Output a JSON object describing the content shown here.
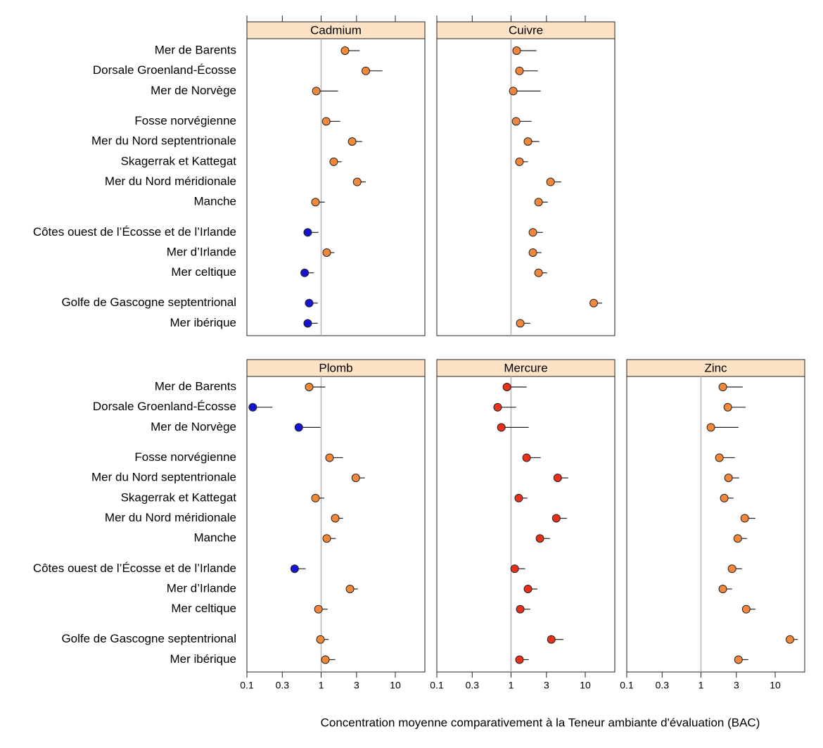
{
  "chart_data": {
    "type": "dot",
    "x_label": "Concentration moyenne  comparativement à la Teneur ambiante d'évaluation (BAC)",
    "log_x": true,
    "xlim": [
      0.1,
      25
    ],
    "xticks": [
      0.1,
      0.3,
      1,
      3,
      10
    ],
    "reference_x": 1,
    "categories": [
      "Mer de Barents",
      "Dorsale Groenland-Écosse",
      "Mer de Norvège",
      "Fosse norvégienne",
      "Mer du Nord septentrionale",
      "Skagerrak et Kattegat",
      "Mer du Nord méridionale",
      "Manche",
      "Côtes ouest de l’Écosse et de l’Irlande",
      "Mer d’Irlande",
      "Mer celtique",
      "Golfe de Gascogne septentrional",
      "Mer ibérique"
    ],
    "panels": [
      {
        "title": "Cadmium",
        "values": [
          2.1,
          4.0,
          0.86,
          1.17,
          2.62,
          1.48,
          3.06,
          0.84,
          0.66,
          1.19,
          0.6,
          0.69,
          0.66
        ],
        "upper": [
          3.3,
          6.7,
          1.69,
          1.81,
          3.57,
          1.89,
          4.0,
          1.12,
          0.92,
          1.51,
          0.8,
          0.9,
          0.9
        ],
        "colors": [
          "#f4883a",
          "#f4883a",
          "#f4883a",
          "#f4883a",
          "#f4883a",
          "#f4883a",
          "#f4883a",
          "#f4883a",
          "#1414d2",
          "#f4883a",
          "#1414d2",
          "#1414d2",
          "#1414d2"
        ]
      },
      {
        "title": "Cuivre",
        "values": [
          1.19,
          1.3,
          1.07,
          1.17,
          1.69,
          1.3,
          3.41,
          2.35,
          1.97,
          1.97,
          2.35,
          13.0,
          1.33
        ],
        "upper": [
          2.2,
          2.3,
          2.51,
          1.89,
          2.4,
          1.69,
          4.74,
          3.13,
          2.68,
          2.57,
          3.06,
          16.9,
          1.81
        ],
        "colors": [
          "#f4883a",
          "#f4883a",
          "#f4883a",
          "#f4883a",
          "#f4883a",
          "#f4883a",
          "#f4883a",
          "#f4883a",
          "#f4883a",
          "#f4883a",
          "#f4883a",
          "#f4883a",
          "#f4883a"
        ]
      },
      {
        "title": "Plomb",
        "values": [
          0.69,
          0.12,
          0.5,
          1.3,
          2.93,
          0.84,
          1.55,
          1.19,
          0.44,
          2.45,
          0.92,
          0.98,
          1.14
        ],
        "upper": [
          1.14,
          0.22,
          0.98,
          1.97,
          3.89,
          1.1,
          1.97,
          1.58,
          0.62,
          3.13,
          1.22,
          1.26,
          1.55
        ],
        "colors": [
          "#f4883a",
          "#1414d2",
          "#1414d2",
          "#f4883a",
          "#f4883a",
          "#f4883a",
          "#f4883a",
          "#f4883a",
          "#1414d2",
          "#f4883a",
          "#f4883a",
          "#f4883a",
          "#f4883a"
        ]
      },
      {
        "title": "Mercure",
        "values": [
          0.88,
          0.66,
          0.74,
          1.62,
          4.25,
          1.27,
          4.07,
          2.45,
          1.12,
          1.69,
          1.33,
          3.49,
          1.3
        ],
        "upper": [
          1.62,
          1.17,
          1.73,
          2.51,
          5.9,
          1.66,
          5.65,
          3.34,
          1.55,
          2.27,
          1.81,
          5.07,
          1.73
        ],
        "colors": [
          "#e8301a",
          "#e8301a",
          "#e8301a",
          "#e8301a",
          "#e8301a",
          "#e8301a",
          "#e8301a",
          "#e8301a",
          "#e8301a",
          "#e8301a",
          "#e8301a",
          "#e8301a",
          "#e8301a"
        ]
      },
      {
        "title": "Zinc",
        "values": [
          1.97,
          2.3,
          1.36,
          1.77,
          2.35,
          2.06,
          3.89,
          3.13,
          2.62,
          1.97,
          4.07,
          15.8,
          3.2
        ],
        "upper": [
          3.65,
          4.0,
          3.2,
          2.86,
          3.27,
          2.74,
          5.41,
          4.16,
          3.57,
          2.62,
          5.41,
          20.2,
          4.34
        ],
        "colors": [
          "#f4883a",
          "#f4883a",
          "#f4883a",
          "#f4883a",
          "#f4883a",
          "#f4883a",
          "#f4883a",
          "#f4883a",
          "#f4883a",
          "#f4883a",
          "#f4883a",
          "#f4883a",
          "#f4883a"
        ]
      }
    ]
  }
}
